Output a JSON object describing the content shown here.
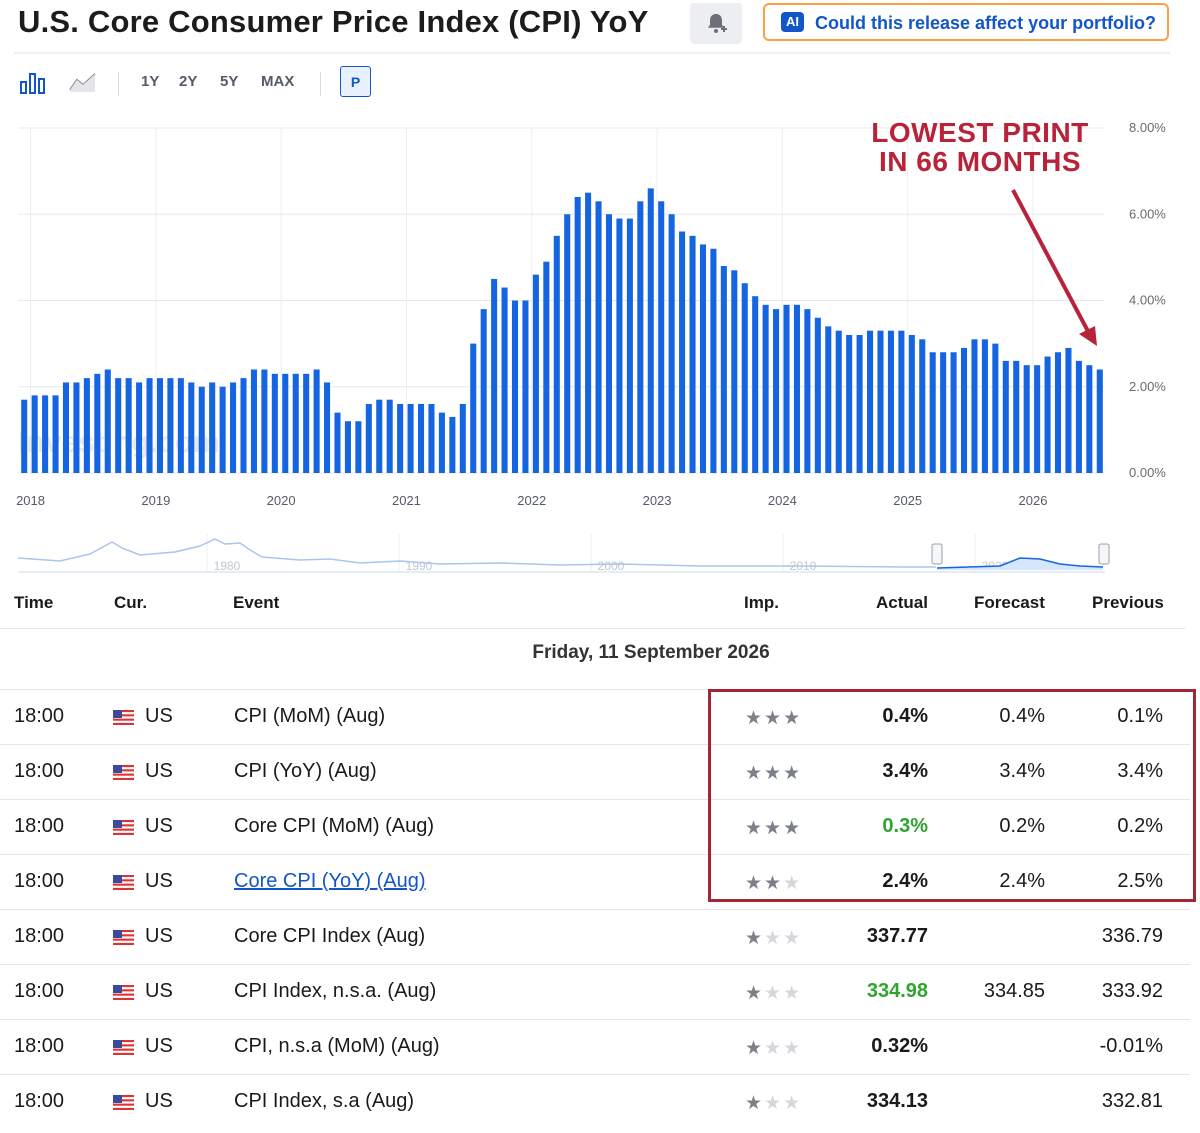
{
  "header": {
    "title": "U.S. Core Consumer Price Index (CPI) YoY",
    "ai_badge": "AI",
    "ai_button": "Could this release affect your portfolio?"
  },
  "toolbar": {
    "ranges": [
      "1Y",
      "2Y",
      "5Y",
      "MAX"
    ],
    "p_button": "P"
  },
  "annotation": {
    "line1": "LOWEST PRINT",
    "line2": "IN 66 MONTHS"
  },
  "watermark": "Investing.com",
  "colors": {
    "bar": "#1565e0",
    "accent": "#1256c7",
    "annotation": "#b8233a",
    "positive": "#2fa530",
    "ai_border": "#ff9f43"
  },
  "chart_data": {
    "type": "bar",
    "title": "U.S. Core Consumer Price Index (CPI) YoY",
    "ylim": [
      0,
      8
    ],
    "y_ticks": [
      "0.00%",
      "2.00%",
      "4.00%",
      "6.00%",
      "8.00%"
    ],
    "x_ticks": [
      "2018",
      "2019",
      "2020",
      "2021",
      "2022",
      "2023",
      "2024",
      "2025",
      "2026"
    ],
    "grid": true,
    "series": [
      {
        "values": [
          1.7,
          1.8,
          1.8,
          1.8,
          2.1,
          2.1,
          2.2,
          2.3,
          2.4,
          2.2,
          2.2,
          2.1,
          2.2,
          2.2,
          2.2,
          2.2,
          2.1,
          2.0,
          2.1,
          2.0,
          2.1,
          2.2,
          2.4,
          2.4,
          2.3,
          2.3,
          2.3,
          2.3,
          2.4,
          2.1,
          1.4,
          1.2,
          1.2,
          1.6,
          1.7,
          1.7,
          1.6,
          1.6,
          1.6,
          1.6,
          1.4,
          1.3,
          1.6,
          3.0,
          3.8,
          4.5,
          4.3,
          4.0,
          4.0,
          4.6,
          4.9,
          5.5,
          6.0,
          6.4,
          6.5,
          6.3,
          6.0,
          5.9,
          5.9,
          6.3,
          6.6,
          6.3,
          6.0,
          5.6,
          5.5,
          5.3,
          5.2,
          4.8,
          4.7,
          4.4,
          4.1,
          3.9,
          3.8,
          3.9,
          3.9,
          3.8,
          3.6,
          3.4,
          3.3,
          3.2,
          3.2,
          3.3,
          3.3,
          3.3,
          3.3,
          3.2,
          3.1,
          2.8,
          2.8,
          2.8,
          2.9,
          3.1,
          3.1,
          3.0,
          2.6,
          2.6,
          2.5,
          2.5,
          2.7,
          2.8,
          2.9,
          2.6,
          2.5,
          2.4
        ]
      }
    ]
  },
  "navigator": {
    "ticks": [
      "1980",
      "1990",
      "2000",
      "2010",
      "2020"
    ]
  },
  "table": {
    "columns": [
      "Time",
      "Cur.",
      "Event",
      "Imp.",
      "Actual",
      "Forecast",
      "Previous"
    ],
    "date": "Friday, 11 September 2026",
    "rows": [
      {
        "time": "18:00",
        "cur": "US",
        "event": "CPI (MoM) (Aug)",
        "imp": 3,
        "actual": "0.4%",
        "actual_color": "#1a1a1a",
        "forecast": "0.4%",
        "previous": "0.1%",
        "link": false
      },
      {
        "time": "18:00",
        "cur": "US",
        "event": "CPI (YoY) (Aug)",
        "imp": 3,
        "actual": "3.4%",
        "actual_color": "#1a1a1a",
        "forecast": "3.4%",
        "previous": "3.4%",
        "link": false
      },
      {
        "time": "18:00",
        "cur": "US",
        "event": "Core CPI (MoM) (Aug)",
        "imp": 3,
        "actual": "0.3%",
        "actual_color": "#2fa530",
        "forecast": "0.2%",
        "previous": "0.2%",
        "link": false
      },
      {
        "time": "18:00",
        "cur": "US",
        "event": "Core CPI (YoY) (Aug)",
        "imp": 2,
        "actual": "2.4%",
        "actual_color": "#1a1a1a",
        "forecast": "2.4%",
        "previous": "2.5%",
        "link": true
      },
      {
        "time": "18:00",
        "cur": "US",
        "event": "Core CPI Index  (Aug)",
        "imp": 1,
        "actual": "337.77",
        "actual_color": "#1a1a1a",
        "forecast": "",
        "previous": "336.79",
        "link": false
      },
      {
        "time": "18:00",
        "cur": "US",
        "event": "CPI Index, n.s.a.  (Aug)",
        "imp": 1,
        "actual": "334.98",
        "actual_color": "#2fa530",
        "forecast": "334.85",
        "previous": "333.92",
        "link": false
      },
      {
        "time": "18:00",
        "cur": "US",
        "event": "CPI, n.s.a (MoM) (Aug)",
        "imp": 1,
        "actual": "0.32%",
        "actual_color": "#1a1a1a",
        "forecast": "",
        "previous": "-0.01%",
        "link": false
      },
      {
        "time": "18:00",
        "cur": "US",
        "event": "CPI Index, s.a  (Aug)",
        "imp": 1,
        "actual": "334.13",
        "actual_color": "#1a1a1a",
        "forecast": "",
        "previous": "332.81",
        "link": false
      }
    ]
  }
}
